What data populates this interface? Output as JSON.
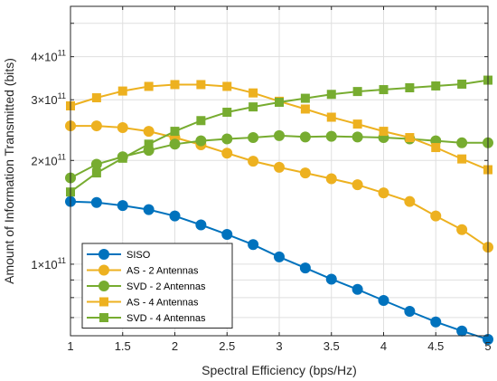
{
  "chart_data": {
    "type": "line",
    "xlabel": "Spectral Efficiency (bps/Hz)",
    "ylabel": "Amount of Information Transmitted (bits)",
    "xlim": [
      1,
      5
    ],
    "ylim": [
      62000000000,
      560000000000
    ],
    "y_scale": "log",
    "grid": true,
    "legend_position": "bottom-left",
    "x_ticks": [
      1,
      1.5,
      2,
      2.5,
      3,
      3.5,
      4,
      4.5,
      5
    ],
    "x_tick_labels": [
      "1",
      "1.5",
      "2",
      "2.5",
      "3",
      "3.5",
      "4",
      "4.5",
      "5"
    ],
    "y_ticks_labeled": [
      {
        "value": 100000000000,
        "base": "1",
        "exp": "11"
      },
      {
        "value": 200000000000,
        "base": "2",
        "exp": "11"
      },
      {
        "value": 300000000000,
        "base": "3",
        "exp": "11"
      },
      {
        "value": 400000000000,
        "base": "4",
        "exp": "11"
      }
    ],
    "y_tick_label_prefix": "×10",
    "y_minor_ticks": [
      70000000000,
      80000000000,
      90000000000,
      500000000000
    ],
    "x": [
      1,
      1.25,
      1.5,
      1.75,
      2,
      2.25,
      2.5,
      2.75,
      3,
      3.25,
      3.5,
      3.75,
      4,
      4.25,
      4.5,
      4.75,
      5
    ],
    "series": [
      {
        "name": "SISO",
        "color": "#0072BD",
        "marker": "circle",
        "values": [
          152000000000.0,
          151000000000.0,
          148000000000.0,
          144000000000.0,
          138000000000.0,
          130000000000.0,
          122000000000.0,
          114000000000.0,
          105000000000.0,
          97500000000.0,
          90500000000.0,
          84500000000.0,
          78500000000.0,
          73000000000.0,
          68000000000.0,
          64000000000.0,
          60500000000.0
        ]
      },
      {
        "name": "AS - 2 Antennas",
        "color": "#EDB120",
        "marker": "circle",
        "values": [
          252000000000.0,
          252000000000.0,
          249000000000.0,
          243000000000.0,
          233000000000.0,
          222000000000.0,
          210000000000.0,
          199000000000.0,
          191000000000.0,
          184000000000.0,
          177000000000.0,
          170000000000.0,
          161000000000.0,
          152000000000.0,
          138000000000.0,
          126000000000.0,
          112000000000.0
        ]
      },
      {
        "name": "SVD - 2 Antennas",
        "color": "#77AC30",
        "marker": "circle",
        "values": [
          178000000000.0,
          195000000000.0,
          205000000000.0,
          214000000000.0,
          223000000000.0,
          228000000000.0,
          231000000000.0,
          233000000000.0,
          236000000000.0,
          234000000000.0,
          235000000000.0,
          234000000000.0,
          233000000000.0,
          231000000000.0,
          228000000000.0,
          225000000000.0,
          225000000000.0
        ]
      },
      {
        "name": "AS - 4 Antennas",
        "color": "#EDB120",
        "marker": "square",
        "values": [
          288000000000.0,
          304000000000.0,
          318000000000.0,
          328000000000.0,
          332000000000.0,
          332000000000.0,
          328000000000.0,
          314000000000.0,
          297000000000.0,
          282000000000.0,
          267000000000.0,
          255000000000.0,
          243000000000.0,
          233000000000.0,
          218000000000.0,
          202000000000.0,
          188000000000.0
        ]
      },
      {
        "name": "SVD - 4 Antennas",
        "color": "#77AC30",
        "marker": "square",
        "values": [
          162000000000.0,
          184000000000.0,
          203000000000.0,
          223000000000.0,
          243000000000.0,
          261000000000.0,
          276000000000.0,
          286000000000.0,
          295000000000.0,
          303000000000.0,
          311000000000.0,
          317000000000.0,
          321000000000.0,
          325000000000.0,
          329000000000.0,
          333000000000.0,
          342000000000.0
        ]
      }
    ]
  }
}
